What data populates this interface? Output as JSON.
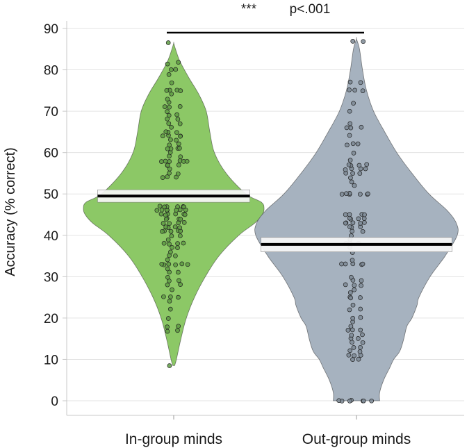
{
  "chart_data": {
    "type": "violin",
    "ylabel": "Accuracy (% correct)",
    "ylim": [
      0,
      90
    ],
    "yticks": [
      0,
      10,
      20,
      30,
      40,
      50,
      60,
      70,
      80,
      90
    ],
    "grid": true,
    "categories": [
      "In-group minds",
      "Out-group minds"
    ],
    "significance": {
      "stars": "***",
      "text": "p<.001",
      "from": 0,
      "to": 1,
      "y": 89
    },
    "colors": {
      "ingroup": "#8cc866",
      "outgroup": "#a6b2bf"
    },
    "series": [
      {
        "category": "In-group minds",
        "color": "#8cc866",
        "mean": 49.5,
        "ci": [
          48,
          51
        ],
        "density": [
          [
            8.5,
            0.01
          ],
          [
            10,
            0.03
          ],
          [
            15,
            0.08
          ],
          [
            20,
            0.14
          ],
          [
            25,
            0.23
          ],
          [
            30,
            0.35
          ],
          [
            35,
            0.5
          ],
          [
            40,
            0.72
          ],
          [
            43,
            0.9
          ],
          [
            45,
            0.98
          ],
          [
            46.5,
            1.0
          ],
          [
            48,
            0.97
          ],
          [
            50,
            0.8
          ],
          [
            55,
            0.58
          ],
          [
            60,
            0.45
          ],
          [
            65,
            0.4
          ],
          [
            70,
            0.36
          ],
          [
            74,
            0.28
          ],
          [
            78,
            0.17
          ],
          [
            82,
            0.07
          ],
          [
            85,
            0.02
          ],
          [
            86.5,
            0.0
          ]
        ],
        "points": [
          8.5,
          16.7,
          17,
          18,
          18,
          20,
          22,
          24,
          25,
          25,
          25,
          27,
          28,
          28,
          29,
          29,
          30,
          31,
          31,
          32,
          33,
          33,
          33,
          33,
          33,
          33,
          34,
          35,
          35,
          36,
          37,
          37,
          38,
          38,
          38,
          38,
          39,
          40,
          40,
          41,
          41,
          41,
          41,
          41,
          42,
          42,
          42,
          42,
          43,
          43,
          43,
          43,
          44,
          44,
          44,
          44,
          45,
          45,
          45,
          45,
          45,
          45,
          46,
          46,
          46,
          46,
          46,
          46,
          46,
          47,
          47,
          47,
          47,
          47,
          47,
          54,
          54,
          54,
          55,
          55,
          56,
          57,
          57,
          57,
          58,
          58,
          58,
          58,
          58,
          58,
          59,
          59,
          60,
          61,
          61,
          61,
          61,
          62,
          62,
          63,
          63,
          64,
          64,
          64,
          64,
          65,
          65,
          65,
          66,
          67,
          67,
          68,
          68,
          69,
          69,
          70,
          71,
          71,
          71,
          72,
          73,
          74,
          75,
          75,
          75,
          75,
          77,
          79,
          80,
          80,
          81.5,
          82,
          86.5
        ]
      },
      {
        "category": "Out-group minds",
        "color": "#a6b2bf",
        "mean": 37.8,
        "ci": [
          36,
          39.5
        ],
        "density": [
          [
            0,
            0.23
          ],
          [
            2,
            0.23
          ],
          [
            5,
            0.27
          ],
          [
            8,
            0.33
          ],
          [
            10,
            0.37
          ],
          [
            12,
            0.43
          ],
          [
            15,
            0.47
          ],
          [
            18,
            0.5
          ],
          [
            20,
            0.55
          ],
          [
            23,
            0.6
          ],
          [
            25,
            0.62
          ],
          [
            30,
            0.73
          ],
          [
            35,
            0.88
          ],
          [
            40,
            1.0
          ],
          [
            43,
            0.99
          ],
          [
            46,
            0.9
          ],
          [
            50,
            0.72
          ],
          [
            55,
            0.55
          ],
          [
            60,
            0.4
          ],
          [
            65,
            0.28
          ],
          [
            70,
            0.17
          ],
          [
            75,
            0.1
          ],
          [
            80,
            0.06
          ],
          [
            85,
            0.03
          ],
          [
            87.5,
            0.0
          ]
        ],
        "points": [
          0,
          0,
          0,
          0,
          0,
          0,
          0,
          10,
          10,
          11,
          11,
          11,
          12,
          12,
          13,
          13,
          14,
          14,
          15,
          15,
          16,
          16,
          17,
          17,
          17,
          18,
          19,
          20,
          20,
          22,
          22,
          23,
          25,
          25,
          25,
          26,
          27,
          28,
          28,
          28,
          29,
          29,
          30,
          33,
          33,
          33,
          33,
          33,
          34,
          36,
          37,
          38,
          38,
          38,
          39,
          40,
          41,
          41,
          42,
          42,
          42,
          43,
          43,
          43,
          43,
          43,
          44,
          44,
          44,
          44,
          45,
          45,
          45,
          45,
          50,
          50,
          50,
          50,
          50,
          50,
          50,
          52,
          53,
          54,
          55,
          55,
          55,
          56,
          56,
          56,
          56,
          57,
          57,
          57,
          57,
          58,
          60,
          62,
          62,
          62,
          64,
          66,
          66,
          66,
          67,
          70,
          72,
          75,
          75,
          75,
          77,
          77,
          87,
          87
        ]
      }
    ]
  }
}
